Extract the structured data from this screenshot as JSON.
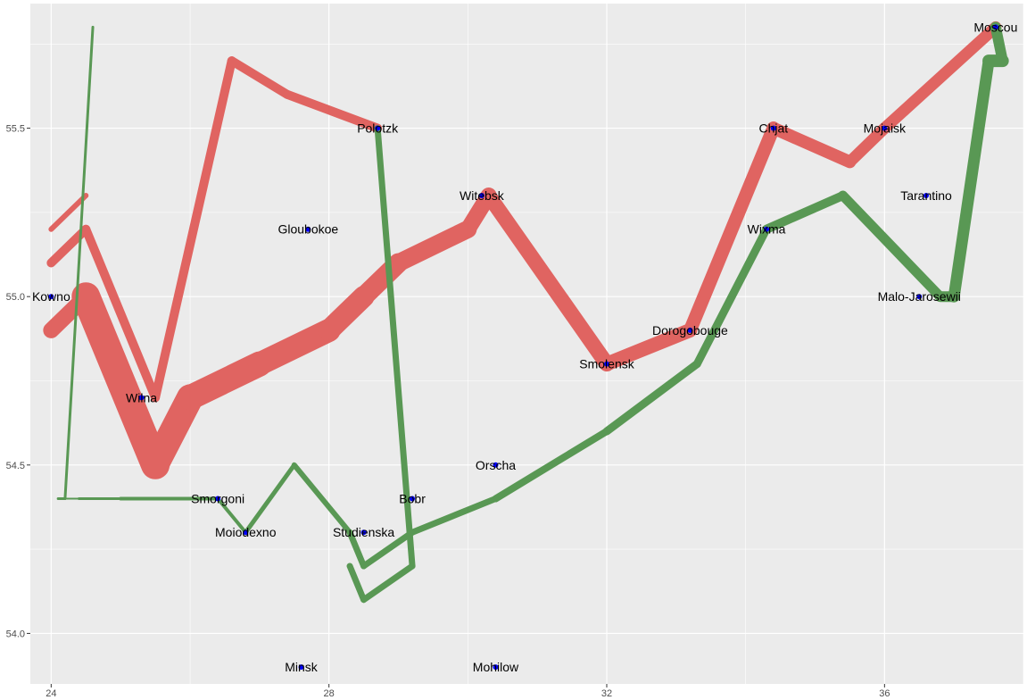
{
  "chart_data": {
    "type": "line",
    "title": "",
    "xlabel": "",
    "ylabel": "",
    "xlim": [
      23.7,
      38.0
    ],
    "ylim": [
      53.85,
      55.87
    ],
    "x_ticks": [
      24,
      28,
      32,
      36
    ],
    "x_tick_labels": [
      "24",
      "28",
      "32",
      "36"
    ],
    "y_ticks": [
      54.0,
      54.5,
      55.0,
      55.5
    ],
    "y_tick_labels": [
      "54.0",
      "54.5",
      "55.0",
      "55.5"
    ],
    "x_minor": [
      26,
      30,
      34,
      38
    ],
    "y_minor": [
      54.25,
      54.75,
      55.25,
      55.75
    ],
    "grid": true,
    "legend": "none",
    "colors": {
      "panel": "#EBEBEB",
      "grid": "#FFFFFF",
      "advance": "#E06461",
      "retreat": "#599854",
      "city": "#0000FF"
    },
    "segments": [
      {
        "group": 1,
        "direction": "advance",
        "x1": 24.0,
        "y1": 54.9,
        "x2": 24.5,
        "y2": 55.0,
        "width": 18
      },
      {
        "group": 1,
        "direction": "advance",
        "x1": 24.5,
        "y1": 55.0,
        "x2": 25.5,
        "y2": 54.5,
        "width": 32
      },
      {
        "group": 1,
        "direction": "advance",
        "x1": 25.5,
        "y1": 54.5,
        "x2": 26.0,
        "y2": 54.7,
        "width": 30
      },
      {
        "group": 1,
        "direction": "advance",
        "x1": 26.0,
        "y1": 54.7,
        "x2": 27.0,
        "y2": 54.8,
        "width": 28
      },
      {
        "group": 1,
        "direction": "advance",
        "x1": 27.0,
        "y1": 54.8,
        "x2": 28.0,
        "y2": 54.9,
        "width": 26
      },
      {
        "group": 1,
        "direction": "advance",
        "x1": 28.0,
        "y1": 54.9,
        "x2": 28.5,
        "y2": 55.0,
        "width": 24
      },
      {
        "group": 1,
        "direction": "advance",
        "x1": 28.5,
        "y1": 55.0,
        "x2": 29.0,
        "y2": 55.1,
        "width": 22
      },
      {
        "group": 1,
        "direction": "advance",
        "x1": 29.0,
        "y1": 55.1,
        "x2": 30.0,
        "y2": 55.2,
        "width": 20
      },
      {
        "group": 1,
        "direction": "advance",
        "x1": 30.0,
        "y1": 55.2,
        "x2": 30.3,
        "y2": 55.3,
        "width": 18
      },
      {
        "group": 1,
        "direction": "advance",
        "x1": 30.3,
        "y1": 55.3,
        "x2": 32.0,
        "y2": 54.8,
        "width": 17
      },
      {
        "group": 1,
        "direction": "advance",
        "x1": 32.0,
        "y1": 54.8,
        "x2": 33.2,
        "y2": 54.9,
        "width": 16
      },
      {
        "group": 1,
        "direction": "advance",
        "x1": 33.2,
        "y1": 54.9,
        "x2": 34.4,
        "y2": 55.5,
        "width": 15
      },
      {
        "group": 1,
        "direction": "advance",
        "x1": 34.4,
        "y1": 55.5,
        "x2": 35.5,
        "y2": 55.4,
        "width": 14
      },
      {
        "group": 1,
        "direction": "advance",
        "x1": 35.5,
        "y1": 55.4,
        "x2": 36.0,
        "y2": 55.5,
        "width": 13
      },
      {
        "group": 1,
        "direction": "advance",
        "x1": 36.0,
        "y1": 55.5,
        "x2": 37.6,
        "y2": 55.8,
        "width": 13
      },
      {
        "group": 1,
        "direction": "retreat",
        "x1": 37.6,
        "y1": 55.8,
        "x2": 37.7,
        "y2": 55.7,
        "width": 12
      },
      {
        "group": 1,
        "direction": "retreat",
        "x1": 37.7,
        "y1": 55.7,
        "x2": 37.5,
        "y2": 55.7,
        "width": 14
      },
      {
        "group": 1,
        "direction": "retreat",
        "x1": 37.5,
        "y1": 55.7,
        "x2": 37.0,
        "y2": 55.0,
        "width": 13
      },
      {
        "group": 1,
        "direction": "retreat",
        "x1": 37.0,
        "y1": 55.0,
        "x2": 36.8,
        "y2": 55.0,
        "width": 12
      },
      {
        "group": 1,
        "direction": "retreat",
        "x1": 36.8,
        "y1": 55.0,
        "x2": 35.4,
        "y2": 55.3,
        "width": 11
      },
      {
        "group": 1,
        "direction": "retreat",
        "x1": 35.4,
        "y1": 55.3,
        "x2": 34.3,
        "y2": 55.2,
        "width": 10
      },
      {
        "group": 1,
        "direction": "retreat",
        "x1": 34.3,
        "y1": 55.2,
        "x2": 33.3,
        "y2": 54.8,
        "width": 9
      },
      {
        "group": 1,
        "direction": "retreat",
        "x1": 33.3,
        "y1": 54.8,
        "x2": 32.0,
        "y2": 54.6,
        "width": 9
      },
      {
        "group": 1,
        "direction": "retreat",
        "x1": 32.0,
        "y1": 54.6,
        "x2": 30.4,
        "y2": 54.4,
        "width": 8
      },
      {
        "group": 1,
        "direction": "retreat",
        "x1": 30.4,
        "y1": 54.4,
        "x2": 29.2,
        "y2": 54.3,
        "width": 7
      },
      {
        "group": 1,
        "direction": "retreat",
        "x1": 29.2,
        "y1": 54.3,
        "x2": 28.5,
        "y2": 54.2,
        "width": 7
      },
      {
        "group": 1,
        "direction": "retreat",
        "x1": 28.5,
        "y1": 54.2,
        "x2": 28.3,
        "y2": 54.3,
        "width": 7
      },
      {
        "group": 1,
        "direction": "retreat",
        "x1": 28.3,
        "y1": 54.3,
        "x2": 27.5,
        "y2": 54.5,
        "width": 6
      },
      {
        "group": 1,
        "direction": "retreat",
        "x1": 27.5,
        "y1": 54.5,
        "x2": 26.8,
        "y2": 54.3,
        "width": 5
      },
      {
        "group": 1,
        "direction": "retreat",
        "x1": 26.8,
        "y1": 54.3,
        "x2": 26.4,
        "y2": 54.4,
        "width": 4
      },
      {
        "group": 1,
        "direction": "retreat",
        "x1": 26.4,
        "y1": 54.4,
        "x2": 25.0,
        "y2": 54.4,
        "width": 4
      },
      {
        "group": 1,
        "direction": "retreat",
        "x1": 25.0,
        "y1": 54.4,
        "x2": 24.4,
        "y2": 54.4,
        "width": 3
      },
      {
        "group": 1,
        "direction": "retreat",
        "x1": 24.4,
        "y1": 54.4,
        "x2": 24.2,
        "y2": 54.4,
        "width": 2
      },
      {
        "group": 1,
        "direction": "retreat",
        "x1": 24.2,
        "y1": 54.4,
        "x2": 24.1,
        "y2": 54.4,
        "width": 2
      },
      {
        "group": 2,
        "direction": "advance",
        "x1": 24.0,
        "y1": 55.1,
        "x2": 24.5,
        "y2": 55.2,
        "width": 10
      },
      {
        "group": 2,
        "direction": "advance",
        "x1": 24.5,
        "y1": 55.2,
        "x2": 25.5,
        "y2": 54.7,
        "width": 10
      },
      {
        "group": 2,
        "direction": "advance",
        "x1": 25.5,
        "y1": 54.7,
        "x2": 26.6,
        "y2": 55.7,
        "width": 10
      },
      {
        "group": 2,
        "direction": "advance",
        "x1": 26.6,
        "y1": 55.7,
        "x2": 27.4,
        "y2": 55.6,
        "width": 10
      },
      {
        "group": 2,
        "direction": "advance",
        "x1": 27.4,
        "y1": 55.6,
        "x2": 28.7,
        "y2": 55.5,
        "width": 10
      },
      {
        "group": 2,
        "direction": "retreat",
        "x1": 28.7,
        "y1": 55.5,
        "x2": 29.2,
        "y2": 54.2,
        "width": 7
      },
      {
        "group": 2,
        "direction": "retreat",
        "x1": 29.2,
        "y1": 54.2,
        "x2": 28.5,
        "y2": 54.1,
        "width": 7
      },
      {
        "group": 2,
        "direction": "retreat",
        "x1": 28.5,
        "y1": 54.1,
        "x2": 28.3,
        "y2": 54.2,
        "width": 7
      },
      {
        "group": 3,
        "direction": "advance",
        "x1": 24.0,
        "y1": 55.2,
        "x2": 24.5,
        "y2": 55.3,
        "width": 6
      },
      {
        "group": 3,
        "direction": "retreat",
        "x1": 24.6,
        "y1": 55.8,
        "x2": 24.2,
        "y2": 54.4,
        "width": 3
      },
      {
        "group": 3,
        "direction": "retreat",
        "x1": 24.2,
        "y1": 54.4,
        "x2": 24.1,
        "y2": 54.4,
        "width": 3
      }
    ],
    "cities": [
      {
        "name": "Kowno",
        "x": 24.0,
        "y": 55.0
      },
      {
        "name": "Wilna",
        "x": 25.3,
        "y": 54.7
      },
      {
        "name": "Smorgoni",
        "x": 26.4,
        "y": 54.4
      },
      {
        "name": "Moiodexno",
        "x": 26.8,
        "y": 54.3
      },
      {
        "name": "Gloubokoe",
        "x": 27.7,
        "y": 55.2
      },
      {
        "name": "Minsk",
        "x": 27.6,
        "y": 53.9
      },
      {
        "name": "Studienska",
        "x": 28.5,
        "y": 54.3
      },
      {
        "name": "Polotzk",
        "x": 28.7,
        "y": 55.5
      },
      {
        "name": "Bobr",
        "x": 29.2,
        "y": 54.4
      },
      {
        "name": "Witebsk",
        "x": 30.2,
        "y": 55.3
      },
      {
        "name": "Orscha",
        "x": 30.4,
        "y": 54.5
      },
      {
        "name": "Mohilow",
        "x": 30.4,
        "y": 53.9
      },
      {
        "name": "Smolensk",
        "x": 32.0,
        "y": 54.8
      },
      {
        "name": "Dorogobouge",
        "x": 33.2,
        "y": 54.9
      },
      {
        "name": "Wixma",
        "x": 34.3,
        "y": 55.2
      },
      {
        "name": "Chjat",
        "x": 34.4,
        "y": 55.5
      },
      {
        "name": "Mojaisk",
        "x": 36.0,
        "y": 55.5
      },
      {
        "name": "Tarantino",
        "x": 36.6,
        "y": 55.3
      },
      {
        "name": "Malo-Jarosewii",
        "x": 36.5,
        "y": 55.0
      },
      {
        "name": "Moscou",
        "x": 37.6,
        "y": 55.8
      }
    ]
  }
}
